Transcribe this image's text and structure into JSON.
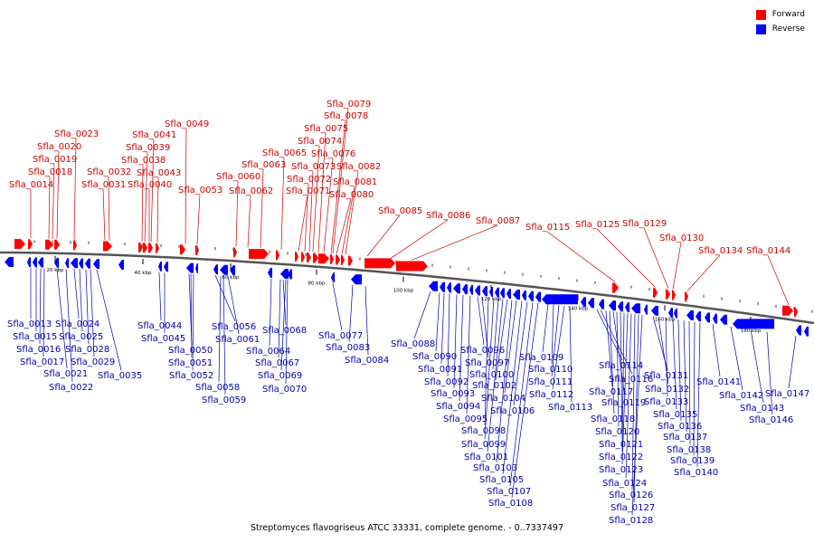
{
  "caption": "Streptomyces flavogriseus ATCC 33331, complete genome. - 0..7337497",
  "legend": [
    {
      "label": "Forward",
      "color": "#ff0000"
    },
    {
      "label": "Reverse",
      "color": "#0000ff"
    }
  ],
  "colors": {
    "forward": "#ff0000",
    "reverse": "#0000ff",
    "forward_text": "#cc0000",
    "reverse_text": "#0000aa",
    "axis": "#555555"
  },
  "ticks": [
    "20 kbp",
    "40 kbp",
    "60 kbp",
    "80 kbp",
    "100 kbp",
    "120 kbp",
    "140 kbp",
    "160 kbp",
    "180 kbp"
  ],
  "forward_labels": [
    "Sfla_0014",
    "Sfla_0018",
    "Sfla_0019",
    "Sfla_0020",
    "Sfla_0023",
    "Sfla_0031",
    "Sfla_0032",
    "Sfla_0038",
    "Sfla_0039",
    "Sfla_0040",
    "Sfla_0041",
    "Sfla_0043",
    "Sfla_0049",
    "Sfla_0053",
    "Sfla_0060",
    "Sfla_0062",
    "Sfla_0063",
    "Sfla_0065",
    "Sfla_0071",
    "Sfla_0072",
    "Sfla_0073",
    "Sfla_0074",
    "Sfla_0075",
    "Sfla_0076",
    "Sfla_0078",
    "Sfla_0079",
    "Sfla_0080",
    "Sfla_0081",
    "Sfla_0082",
    "Sfla_0085",
    "Sfla_0086",
    "Sfla_0087",
    "Sfla_0115",
    "Sfla_0125",
    "Sfla_0129",
    "Sfla_0130",
    "Sfla_0134",
    "Sfla_0144"
  ],
  "reverse_labels": [
    "Sfla_0013",
    "Sfla_0015",
    "Sfla_0016",
    "Sfla_0017",
    "Sfla_0021",
    "Sfla_0022",
    "Sfla_0024",
    "Sfla_0025",
    "Sfla_0028",
    "Sfla_0029",
    "Sfla_0035",
    "Sfla_0044",
    "Sfla_0045",
    "Sfla_0050",
    "Sfla_0051",
    "Sfla_0052",
    "Sfla_0056",
    "Sfla_0058",
    "Sfla_0059",
    "Sfla_0061",
    "Sfla_0064",
    "Sfla_0067",
    "Sfla_0068",
    "Sfla_0069",
    "Sfla_0070",
    "Sfla_0077",
    "Sfla_0083",
    "Sfla_0084",
    "Sfla_0088",
    "Sfla_0090",
    "Sfla_0091",
    "Sfla_0092",
    "Sfla_0093",
    "Sfla_0094",
    "Sfla_0095",
    "Sfla_0096",
    "Sfla_0097",
    "Sfla_0098",
    "Sfla_0099",
    "Sfla_0100",
    "Sfla_0101",
    "Sfla_0102",
    "Sfla_0103",
    "Sfla_0104",
    "Sfla_0105",
    "Sfla_0106",
    "Sfla_0107",
    "Sfla_0108",
    "Sfla_0109",
    "Sfla_0110",
    "Sfla_0111",
    "Sfla_0112",
    "Sfla_0113",
    "Sfla_0114",
    "Sfla_0116",
    "Sfla_0117",
    "Sfla_0118",
    "Sfla_0119",
    "Sfla_0120",
    "Sfla_0121",
    "Sfla_0122",
    "Sfla_0123",
    "Sfla_0124",
    "Sfla_0126",
    "Sfla_0127",
    "Sfla_0128",
    "Sfla_0131",
    "Sfla_0132",
    "Sfla_0133",
    "Sfla_0135",
    "Sfla_0136",
    "Sfla_0137",
    "Sfla_0138",
    "Sfla_0139",
    "Sfla_0140",
    "Sfla_0141",
    "Sfla_0142",
    "Sfla_0143",
    "Sfla_0146",
    "Sfla_0147"
  ]
}
